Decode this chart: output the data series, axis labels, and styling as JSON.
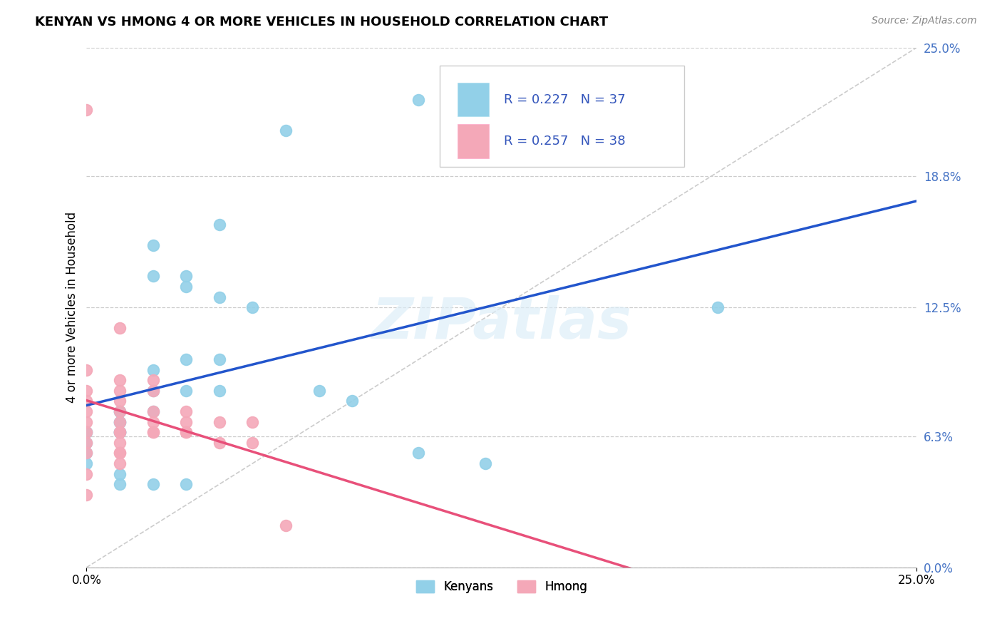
{
  "title": "KENYAN VS HMONG 4 OR MORE VEHICLES IN HOUSEHOLD CORRELATION CHART",
  "source": "Source: ZipAtlas.com",
  "ylabel": "4 or more Vehicles in Household",
  "watermark": "ZIPatlas",
  "xmin": 0.0,
  "xmax": 0.25,
  "ymin": 0.0,
  "ymax": 0.25,
  "y_tick_labels": [
    "0.0%",
    "6.3%",
    "12.5%",
    "18.8%",
    "25.0%"
  ],
  "y_tick_values": [
    0.0,
    0.063,
    0.125,
    0.188,
    0.25
  ],
  "legend_label1": "Kenyans",
  "legend_label2": "Hmong",
  "R1": 0.227,
  "N1": 37,
  "R2": 0.257,
  "N2": 38,
  "color_kenyan": "#92D0E8",
  "color_hmong": "#F4A8B8",
  "color_line_kenyan": "#2255CC",
  "color_line_hmong": "#E8507A",
  "color_diagonal": "#CCCCCC",
  "kenyan_x": [
    0.04,
    0.06,
    0.1,
    0.02,
    0.03,
    0.02,
    0.03,
    0.04,
    0.05,
    0.04,
    0.03,
    0.02,
    0.02,
    0.03,
    0.04,
    0.02,
    0.01,
    0.01,
    0.01,
    0.01,
    0.01,
    0.01,
    0.01,
    0.0,
    0.0,
    0.0,
    0.0,
    0.0,
    0.01,
    0.07,
    0.08,
    0.1,
    0.12,
    0.19,
    0.01,
    0.02,
    0.03
  ],
  "kenyan_y": [
    0.165,
    0.21,
    0.225,
    0.155,
    0.14,
    0.14,
    0.135,
    0.13,
    0.125,
    0.1,
    0.1,
    0.095,
    0.085,
    0.085,
    0.085,
    0.075,
    0.075,
    0.075,
    0.07,
    0.07,
    0.065,
    0.065,
    0.065,
    0.065,
    0.065,
    0.06,
    0.055,
    0.05,
    0.045,
    0.085,
    0.08,
    0.055,
    0.05,
    0.125,
    0.04,
    0.04,
    0.04
  ],
  "hmong_x": [
    0.0,
    0.0,
    0.0,
    0.0,
    0.0,
    0.0,
    0.0,
    0.0,
    0.0,
    0.0,
    0.0,
    0.01,
    0.01,
    0.01,
    0.01,
    0.01,
    0.01,
    0.01,
    0.01,
    0.01,
    0.01,
    0.01,
    0.01,
    0.02,
    0.02,
    0.02,
    0.02,
    0.02,
    0.02,
    0.03,
    0.03,
    0.03,
    0.03,
    0.04,
    0.04,
    0.05,
    0.05,
    0.06
  ],
  "hmong_y": [
    0.22,
    0.095,
    0.085,
    0.08,
    0.075,
    0.07,
    0.065,
    0.06,
    0.055,
    0.045,
    0.035,
    0.115,
    0.09,
    0.085,
    0.08,
    0.075,
    0.07,
    0.065,
    0.065,
    0.06,
    0.055,
    0.055,
    0.05,
    0.09,
    0.085,
    0.075,
    0.07,
    0.065,
    0.065,
    0.075,
    0.07,
    0.065,
    0.065,
    0.07,
    0.06,
    0.07,
    0.06,
    0.02
  ]
}
